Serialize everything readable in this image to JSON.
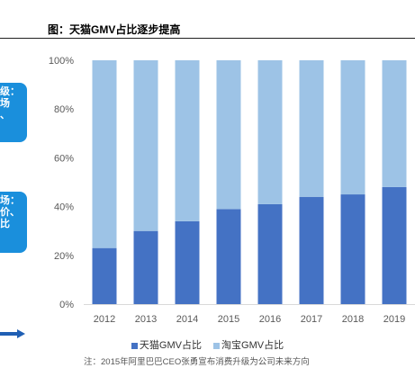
{
  "title": "图：天猫GMV占比逐步提高",
  "callouts": [
    {
      "lines": [
        "级：",
        "场",
        "、"
      ]
    },
    {
      "lines": [
        "场：",
        "价、",
        "比"
      ]
    }
  ],
  "note": "注：2015年阿里巴巴CEO张勇宣布消费升级为公司未来方向",
  "colors": {
    "tmall": "#4472c4",
    "taobao": "#9dc3e6",
    "callout": "#1a8fdc"
  },
  "chart_data": {
    "type": "bar",
    "stacked": true,
    "categories": [
      "2012",
      "2013",
      "2014",
      "2015",
      "2016",
      "2017",
      "2018",
      "2019"
    ],
    "series": [
      {
        "name": "天猫GMV占比",
        "values": [
          23,
          30,
          34,
          39,
          41,
          44,
          45,
          48
        ]
      },
      {
        "name": "淘宝GMV占比",
        "values": [
          77,
          70,
          66,
          61,
          59,
          56,
          55,
          52
        ]
      }
    ],
    "y_ticks": [
      "0%",
      "20%",
      "40%",
      "60%",
      "80%",
      "100%"
    ],
    "ylim": [
      0,
      100
    ],
    "legend_position": "bottom",
    "grid": false
  }
}
